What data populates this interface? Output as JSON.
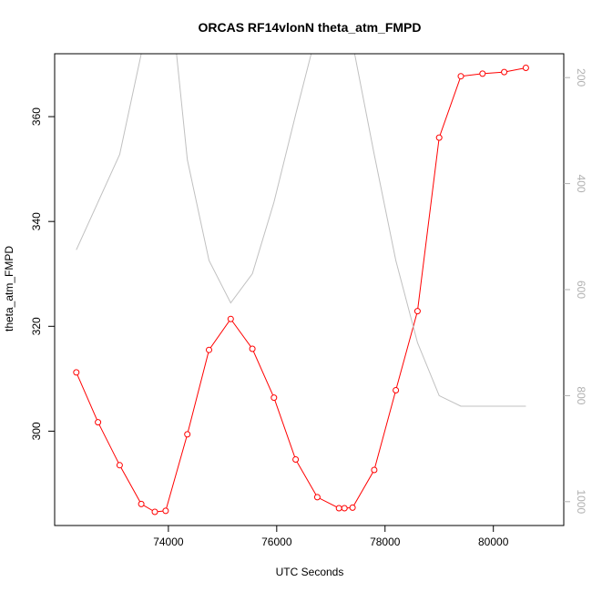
{
  "chart_data": {
    "type": "line",
    "title": "ORCAS RF14vlonN theta_atm_FMPD",
    "xlabel": "UTC Seconds",
    "ylabel": "theta_atm_FMPD",
    "xlim": [
      71900,
      81300
    ],
    "ylim": [
      282,
      372
    ],
    "y2lim": [
      1045,
      155
    ],
    "y2_reversed": true,
    "grid": false,
    "legend": "none",
    "x_ticks": [
      74000,
      76000,
      78000,
      80000
    ],
    "x_tick_labels": [
      "74000",
      "76000",
      "78000",
      "80000"
    ],
    "y_ticks": [
      300,
      320,
      340,
      360
    ],
    "y_tick_labels": [
      "300",
      "320",
      "340",
      "360"
    ],
    "y2_ticks": [
      200,
      400,
      600,
      800,
      1000
    ],
    "y2_tick_labels": [
      "200",
      "400",
      "600",
      "800",
      "1000"
    ],
    "series": [
      {
        "axis": "left",
        "color": "#ff0000",
        "markers": true,
        "x": [
          72300,
          72700,
          73100,
          73500,
          73750,
          73950,
          74350,
          74750,
          75150,
          75550,
          75950,
          76350,
          76750,
          77150,
          77250,
          77400,
          77800,
          78200,
          78600,
          79000,
          79400,
          79800,
          80200,
          80600
        ],
        "y": [
          311.2,
          301.7,
          293.5,
          286.1,
          284.6,
          284.8,
          299.4,
          315.5,
          321.4,
          315.7,
          306.4,
          294.6,
          287.4,
          285.3,
          285.3,
          285.4,
          292.6,
          307.8,
          322.9,
          356.0,
          367.7,
          368.2,
          368.5,
          369.3
        ]
      },
      {
        "axis": "right",
        "color": "#c0c0c0",
        "markers": false,
        "x": [
          72300,
          73100,
          73500,
          74150,
          74350,
          74750,
          75150,
          75550,
          75950,
          76350,
          76750,
          77400,
          77800,
          78200,
          78600,
          79000,
          79400,
          80600
        ],
        "y": [
          525,
          345,
          155,
          155,
          355,
          545,
          625,
          570,
          435,
          270,
          110,
          135,
          345,
          545,
          700,
          800,
          820,
          820
        ]
      }
    ]
  }
}
